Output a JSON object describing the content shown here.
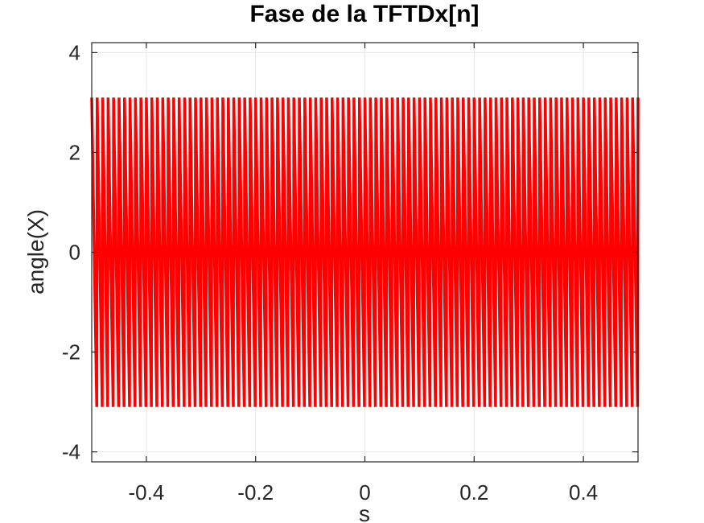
{
  "chart_data": {
    "type": "line",
    "title": "Fase de la TFTDx[n]",
    "xlabel": "s",
    "ylabel": "angle(X)",
    "xlim": [
      -0.5,
      0.5
    ],
    "ylim": [
      -4.2,
      4.2
    ],
    "xticks": [
      -0.4,
      -0.2,
      0,
      0.2,
      0.4
    ],
    "xtick_labels": [
      "-0.4",
      "-0.2",
      "0",
      "0.2",
      "0.4"
    ],
    "yticks": [
      -4,
      -2,
      0,
      2,
      4
    ],
    "ytick_labels": [
      "-4",
      "-2",
      "0",
      "2",
      "4"
    ],
    "grid": true,
    "series": [
      {
        "color": "#ff0000",
        "description_note": "",
        "wrapped_phase": true,
        "cycles_across_range": 100,
        "amplitude": 3.1,
        "x_start": -0.5,
        "x_end": 0.5
      }
    ]
  }
}
